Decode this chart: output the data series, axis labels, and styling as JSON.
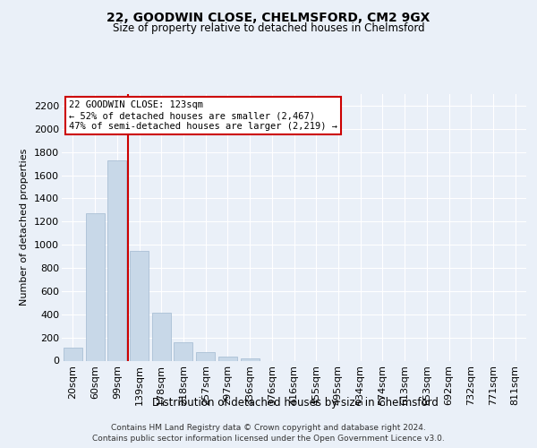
{
  "title1": "22, GOODWIN CLOSE, CHELMSFORD, CM2 9GX",
  "title2": "Size of property relative to detached houses in Chelmsford",
  "xlabel": "Distribution of detached houses by size in Chelmsford",
  "ylabel": "Number of detached properties",
  "footnote1": "Contains HM Land Registry data © Crown copyright and database right 2024.",
  "footnote2": "Contains public sector information licensed under the Open Government Licence v3.0.",
  "categories": [
    "20sqm",
    "60sqm",
    "99sqm",
    "139sqm",
    "178sqm",
    "218sqm",
    "257sqm",
    "297sqm",
    "336sqm",
    "376sqm",
    "416sqm",
    "455sqm",
    "495sqm",
    "534sqm",
    "574sqm",
    "613sqm",
    "653sqm",
    "692sqm",
    "732sqm",
    "771sqm",
    "811sqm"
  ],
  "values": [
    110,
    1270,
    1730,
    950,
    410,
    155,
    75,
    38,
    20,
    0,
    0,
    0,
    0,
    0,
    0,
    0,
    0,
    0,
    0,
    0,
    0
  ],
  "bar_color": "#c8d8e8",
  "bar_edge_color": "#a0b8d0",
  "red_line_x": 2.48,
  "annotation_line1": "22 GOODWIN CLOSE: 123sqm",
  "annotation_line2": "← 52% of detached houses are smaller (2,467)",
  "annotation_line3": "47% of semi-detached houses are larger (2,219) →",
  "ylim": [
    0,
    2300
  ],
  "yticks": [
    0,
    200,
    400,
    600,
    800,
    1000,
    1200,
    1400,
    1600,
    1800,
    2000,
    2200
  ],
  "background_color": "#eaf0f8",
  "plot_bg_color": "#eaf0f8",
  "grid_color": "#ffffff",
  "annotation_box_color": "#ffffff",
  "annotation_border_color": "#cc0000"
}
